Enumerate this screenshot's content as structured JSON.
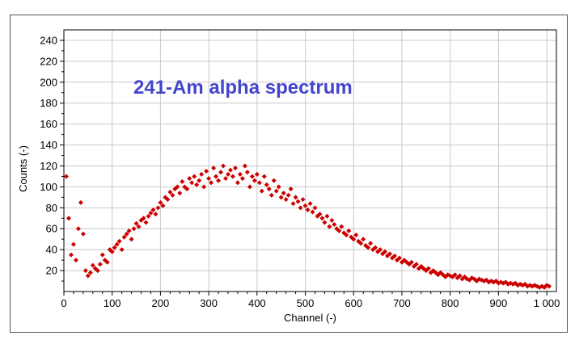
{
  "chart_data": {
    "type": "scatter",
    "title": "241-Am alpha spectrum",
    "xlabel": "Channel (-)",
    "ylabel": "Counts (-)",
    "xlim": [
      0,
      1020
    ],
    "ylim": [
      0,
      250
    ],
    "x_ticks": [
      0,
      100,
      200,
      300,
      400,
      500,
      600,
      700,
      800,
      900,
      1000
    ],
    "x_tick_labels": [
      "0",
      "100",
      "200",
      "300",
      "400",
      "500",
      "600",
      "700",
      "800",
      "900",
      "1 000"
    ],
    "y_ticks": [
      20,
      40,
      60,
      80,
      100,
      120,
      140,
      160,
      180,
      200,
      220,
      240
    ],
    "y_tick_labels": [
      "20",
      "40",
      "60",
      "80",
      "100",
      "120",
      "140",
      "160",
      "180",
      "200",
      "220",
      "240"
    ],
    "grid": true,
    "marker": "diamond",
    "series_color": "#cc0000",
    "series": [
      {
        "x": [
          5,
          10,
          15,
          20,
          25,
          30,
          35,
          40,
          45,
          50,
          55,
          60,
          65,
          70,
          75,
          80,
          85,
          90,
          95,
          100,
          105,
          110,
          115,
          120,
          125,
          130,
          135,
          140,
          145,
          150,
          155,
          160,
          165,
          170,
          175,
          180,
          185,
          190,
          195,
          200,
          205,
          210,
          215,
          220,
          225,
          230,
          235,
          240,
          245,
          250,
          255,
          260,
          265,
          270,
          275,
          280,
          285,
          290,
          295,
          300,
          305,
          310,
          315,
          320,
          325,
          330,
          335,
          340,
          345,
          350,
          355,
          360,
          365,
          370,
          375,
          380,
          385,
          390,
          395,
          400,
          405,
          410,
          415,
          420,
          425,
          430,
          435,
          440,
          445,
          450,
          455,
          460,
          465,
          470,
          475,
          480,
          485,
          490,
          495,
          500,
          505,
          510,
          515,
          520,
          525,
          530,
          535,
          540,
          545,
          550,
          555,
          560,
          565,
          570,
          575,
          580,
          585,
          590,
          595,
          600,
          605,
          610,
          615,
          620,
          625,
          630,
          635,
          640,
          645,
          650,
          655,
          660,
          665,
          670,
          675,
          680,
          685,
          690,
          695,
          700,
          705,
          710,
          715,
          720,
          725,
          730,
          735,
          740,
          745,
          750,
          755,
          760,
          765,
          770,
          775,
          780,
          785,
          790,
          795,
          800,
          805,
          810,
          815,
          820,
          825,
          830,
          835,
          840,
          845,
          850,
          855,
          860,
          865,
          870,
          875,
          880,
          885,
          890,
          895,
          900,
          905,
          910,
          915,
          920,
          925,
          930,
          935,
          940,
          945,
          950,
          955,
          960,
          965,
          970,
          975,
          980,
          985,
          990,
          995,
          1000,
          1005
        ],
        "y": [
          110,
          70,
          35,
          45,
          30,
          60,
          85,
          55,
          20,
          15,
          18,
          25,
          22,
          20,
          26,
          35,
          30,
          28,
          40,
          38,
          42,
          45,
          48,
          40,
          52,
          55,
          58,
          50,
          60,
          65,
          62,
          68,
          70,
          66,
          72,
          75,
          78,
          74,
          80,
          85,
          82,
          90,
          88,
          95,
          92,
          98,
          100,
          94,
          105,
          100,
          98,
          108,
          104,
          110,
          102,
          106,
          112,
          100,
          115,
          108,
          104,
          118,
          110,
          106,
          114,
          120,
          108,
          112,
          116,
          110,
          118,
          104,
          112,
          108,
          120,
          114,
          100,
          110,
          106,
          112,
          104,
          96,
          110,
          102,
          98,
          92,
          106,
          96,
          100,
          90,
          94,
          88,
          92,
          98,
          84,
          90,
          86,
          80,
          88,
          82,
          78,
          84,
          76,
          80,
          72,
          74,
          70,
          66,
          72,
          62,
          68,
          64,
          60,
          58,
          62,
          56,
          54,
          58,
          52,
          50,
          54,
          48,
          46,
          50,
          44,
          42,
          46,
          40,
          42,
          38,
          40,
          36,
          38,
          34,
          36,
          32,
          34,
          30,
          32,
          28,
          30,
          28,
          26,
          28,
          24,
          26,
          22,
          24,
          22,
          20,
          22,
          18,
          20,
          18,
          16,
          18,
          16,
          14,
          16,
          15,
          14,
          16,
          13,
          15,
          12,
          14,
          12,
          11,
          13,
          12,
          10,
          12,
          11,
          10,
          11,
          9,
          10,
          9,
          10,
          8,
          9,
          8,
          9,
          7,
          8,
          7,
          8,
          6,
          7,
          6,
          7,
          5,
          6,
          5,
          6,
          5,
          4,
          5,
          4,
          6,
          5
        ]
      }
    ]
  }
}
